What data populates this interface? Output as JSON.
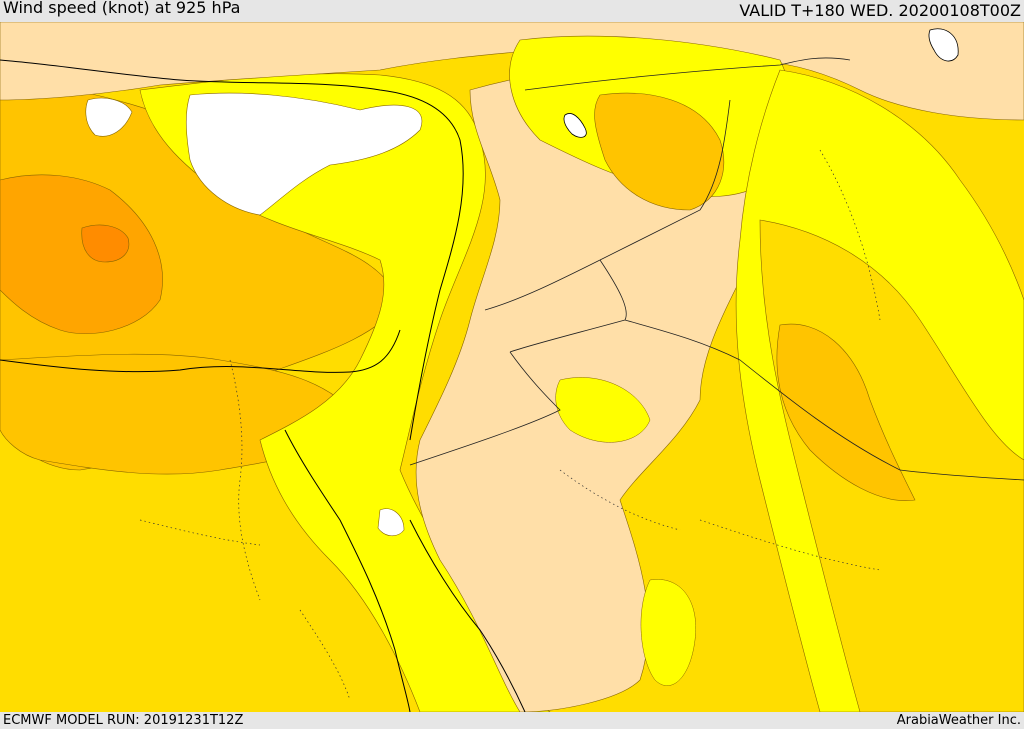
{
  "header": {
    "title": "Wind speed (knot) at 925 hPa",
    "valid": "VALID T+180 WED. 20200108T00Z"
  },
  "footer": {
    "model_run": "ECMWF MODEL RUN: 20191231T12Z",
    "credit": "ArabiaWeather Inc."
  },
  "map": {
    "fill_colors": {
      "lightest": "#ffdfa8",
      "yellow": "#ffff00",
      "gold": "#ffdd00",
      "amber": "#ffc400",
      "orange": "#ffa500",
      "dark_orange": "#ff8c00",
      "land_no_data": "#ffffff"
    }
  }
}
